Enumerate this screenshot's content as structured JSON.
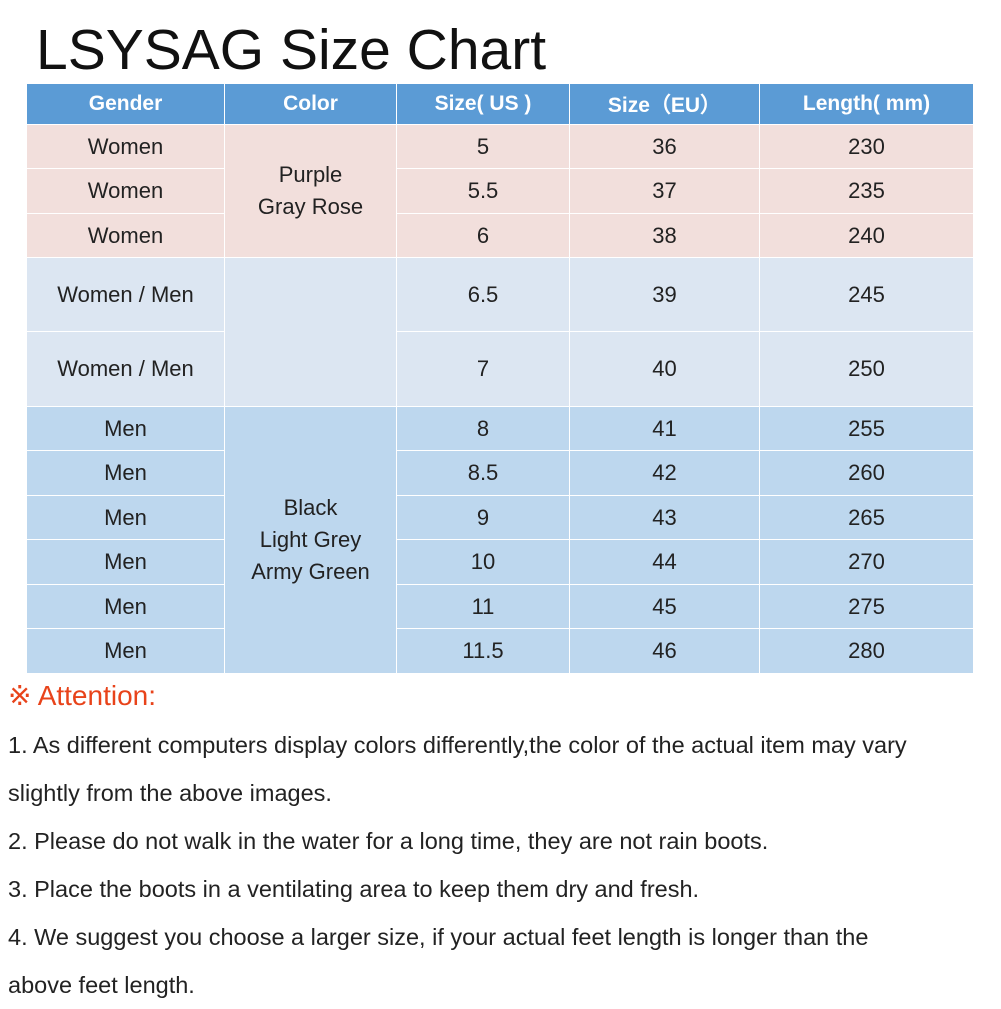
{
  "title": "LSYSAG Size Chart",
  "table": {
    "headers": [
      "Gender",
      "Color",
      "Size( US )",
      "Size（EU）",
      "Length( mm)"
    ],
    "color_groups": {
      "pink": "Purple\nGray Rose",
      "lightblue": "",
      "blue": "Black\nLight Grey\nArmy Green"
    },
    "rows": [
      {
        "gender": "Women",
        "us": "5",
        "eu": "36",
        "length": "230"
      },
      {
        "gender": "Women",
        "us": "5.5",
        "eu": "37",
        "length": "235"
      },
      {
        "gender": "Women",
        "us": "6",
        "eu": "38",
        "length": "240"
      },
      {
        "gender": "Women / Men",
        "us": "6.5",
        "eu": "39",
        "length": "245"
      },
      {
        "gender": "Women / Men",
        "us": "7",
        "eu": "40",
        "length": "250"
      },
      {
        "gender": "Men",
        "us": "8",
        "eu": "41",
        "length": "255"
      },
      {
        "gender": "Men",
        "us": "8.5",
        "eu": "42",
        "length": "260"
      },
      {
        "gender": "Men",
        "us": "9",
        "eu": "43",
        "length": "265"
      },
      {
        "gender": "Men",
        "us": "10",
        "eu": "44",
        "length": "270"
      },
      {
        "gender": "Men",
        "us": "11",
        "eu": "45",
        "length": "275"
      },
      {
        "gender": "Men",
        "us": "11.5",
        "eu": "46",
        "length": "280"
      }
    ]
  },
  "attention": {
    "label": "※ Attention:",
    "notes": [
      "1. As different computers display colors differently,the color of the actual item may vary",
      "slightly from the above images.",
      "2. Please do not walk in the water for a long time, they are not rain boots.",
      "3. Place the boots in a ventilating area to keep them dry and fresh.",
      "4. We suggest you choose a larger size, if your actual feet length is longer than the",
      "above feet length."
    ]
  },
  "colors": {
    "header": "#5b9bd5",
    "pink_rows": "#f2dfdc",
    "lightblue_rows": "#dce6f2",
    "blue_rows": "#bdd7ee",
    "attention": "#e8431a"
  }
}
